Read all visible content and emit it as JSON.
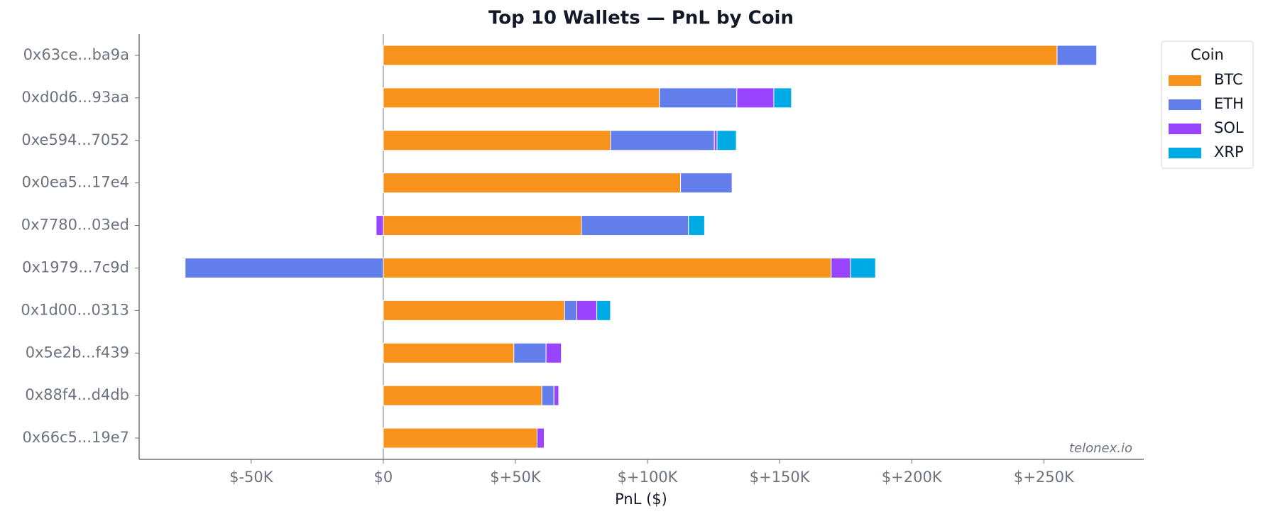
{
  "chart_data": {
    "type": "stacked_barh",
    "title": "Top 10 Wallets — PnL by Coin",
    "xlabel": "PnL ($)",
    "legend_title": "Coin",
    "legend_position": "upper right",
    "watermark": "telonex.io",
    "categories": [
      "0x63ce...ba9a",
      "0xd0d6...93aa",
      "0xe594...7052",
      "0x0ea5...17e4",
      "0x7780...03ed",
      "0x1979...7c9d",
      "0x1d00...0313",
      "0x5e2b...f439",
      "0x88f4...d4db",
      "0x66c5...19e7"
    ],
    "series": [
      {
        "name": "BTC",
        "color": "#f7931a",
        "values": [
          255000,
          104500,
          86000,
          112500,
          75000,
          169500,
          68600,
          49400,
          60000,
          58200
        ]
      },
      {
        "name": "ETH",
        "color": "#627eea",
        "values": [
          15000,
          29300,
          39300,
          19500,
          40500,
          -75000,
          4600,
          12200,
          4600,
          0
        ]
      },
      {
        "name": "SOL",
        "color": "#9945ff",
        "values": [
          0,
          14000,
          1000,
          0,
          -2700,
          7300,
          7600,
          5800,
          1800,
          2700
        ]
      },
      {
        "name": "XRP",
        "color": "#00aae4",
        "values": [
          0,
          6700,
          7300,
          0,
          6100,
          9500,
          5200,
          0,
          0,
          0
        ]
      }
    ],
    "xlim": [
      -92400,
      287800
    ],
    "xticks": [
      {
        "value": -50000,
        "label": "$-50K"
      },
      {
        "value": 0,
        "label": "$0"
      },
      {
        "value": 50000,
        "label": "$+50K"
      },
      {
        "value": 100000,
        "label": "$+100K"
      },
      {
        "value": 150000,
        "label": "$+150K"
      },
      {
        "value": 200000,
        "label": "$+200K"
      },
      {
        "value": 250000,
        "label": "$+250K"
      }
    ]
  }
}
